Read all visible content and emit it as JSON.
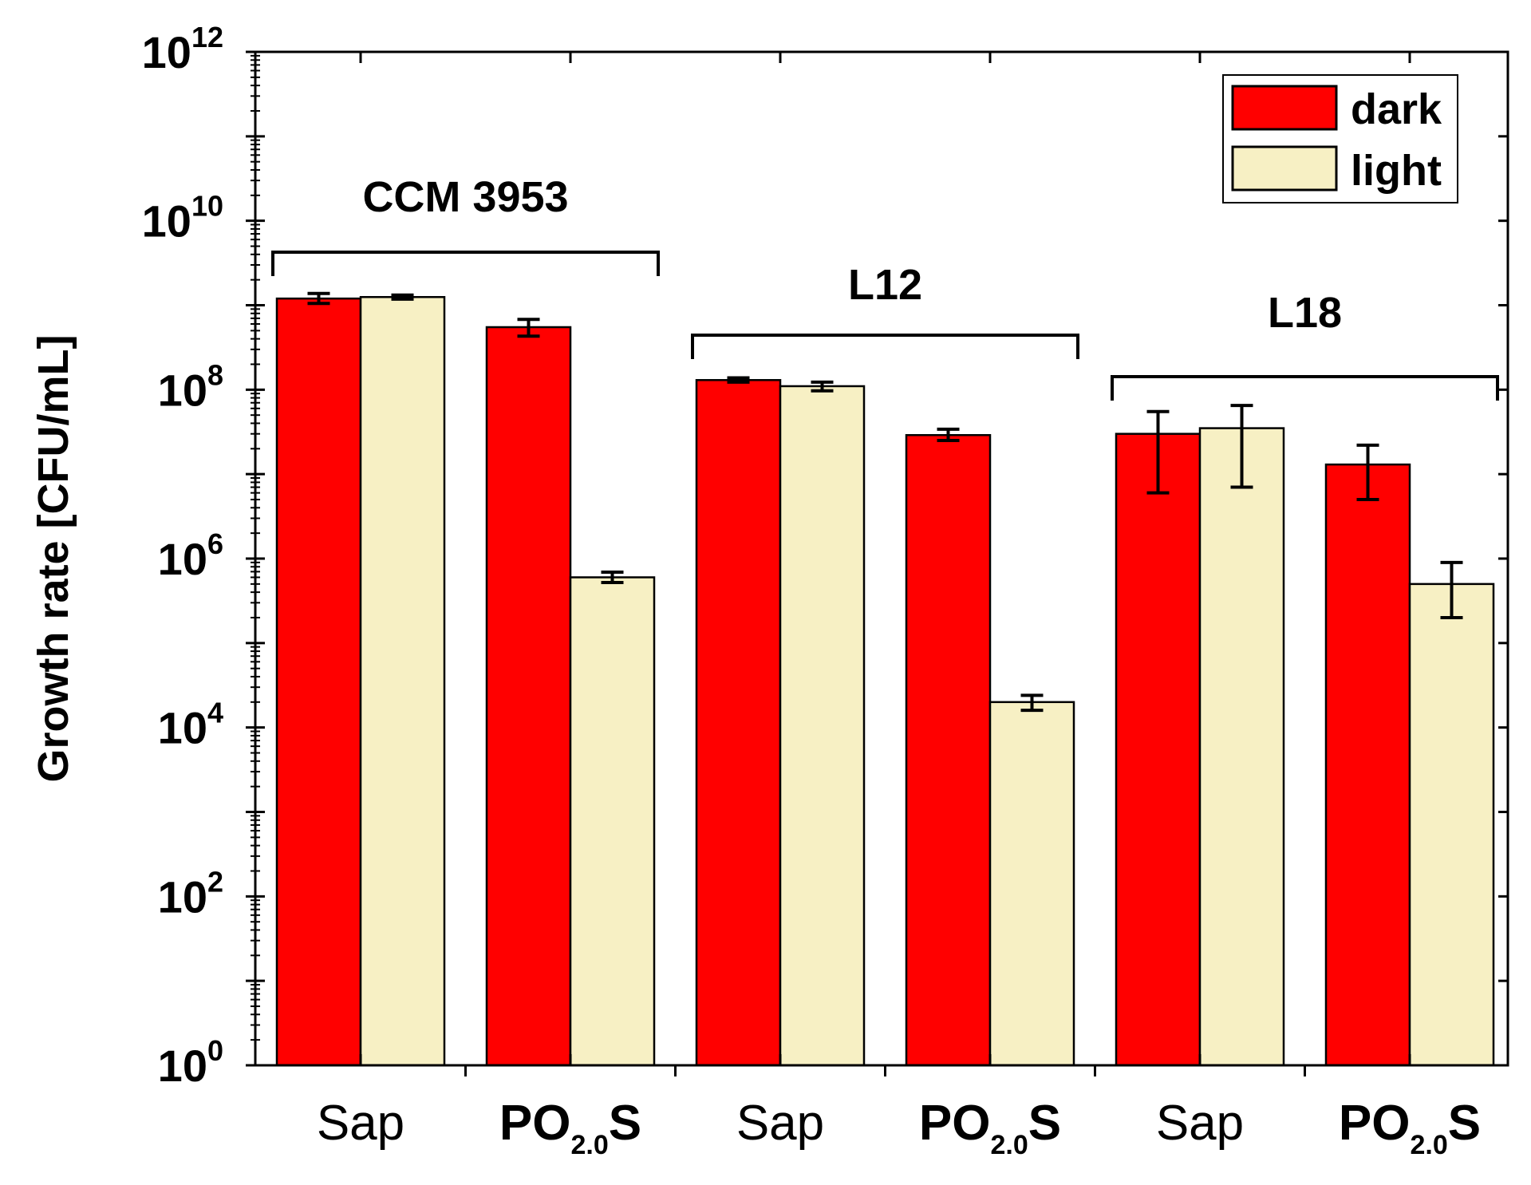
{
  "chart_data": {
    "type": "bar",
    "ylabel": "Growth rate [CFU/mL]",
    "yscale": "log",
    "ylim": [
      1,
      1000000000000
    ],
    "yticks": [
      {
        "base": "10",
        "exp": "0"
      },
      {
        "base": "10",
        "exp": "2"
      },
      {
        "base": "10",
        "exp": "4"
      },
      {
        "base": "10",
        "exp": "6"
      },
      {
        "base": "10",
        "exp": "8"
      },
      {
        "base": "10",
        "exp": "10"
      },
      {
        "base": "10",
        "exp": "12"
      }
    ],
    "categories": [
      {
        "main": "Sap",
        "sub": "",
        "tail": "",
        "bold": false
      },
      {
        "main": "PO",
        "sub": "2.0",
        "tail": "S",
        "bold": true
      },
      {
        "main": "Sap",
        "sub": "",
        "tail": "",
        "bold": false
      },
      {
        "main": "PO",
        "sub": "2.0",
        "tail": "S",
        "bold": true
      },
      {
        "main": "Sap",
        "sub": "",
        "tail": "",
        "bold": false
      },
      {
        "main": "PO",
        "sub": "2.0",
        "tail": "S",
        "bold": true
      }
    ],
    "groups": [
      {
        "label": "CCM 3953",
        "categories": [
          0,
          1
        ]
      },
      {
        "label": "L12",
        "categories": [
          2,
          3
        ]
      },
      {
        "label": "L18",
        "categories": [
          4,
          5
        ]
      }
    ],
    "series": [
      {
        "name": "dark",
        "color": "#ff0000",
        "values": [
          1200000000,
          550000000,
          130000000,
          29000000,
          30000000,
          13000000
        ],
        "error_low": [
          1050000000,
          430000000,
          123000000,
          25000000,
          6000000,
          5000000
        ],
        "error_high": [
          1380000000,
          680000000,
          138000000,
          34000000,
          55000000,
          22000000
        ]
      },
      {
        "name": "light",
        "color": "#f7f0c4",
        "values": [
          1250000000,
          600000,
          110000000,
          20000,
          35000000,
          500000
        ],
        "error_low": [
          1180000000,
          520000,
          97000000,
          16000,
          7000000,
          200000
        ],
        "error_high": [
          1320000000,
          690000,
          123000000,
          24000,
          65000000,
          900000
        ]
      }
    ],
    "legend": {
      "position": "top-right"
    },
    "grid": false
  }
}
